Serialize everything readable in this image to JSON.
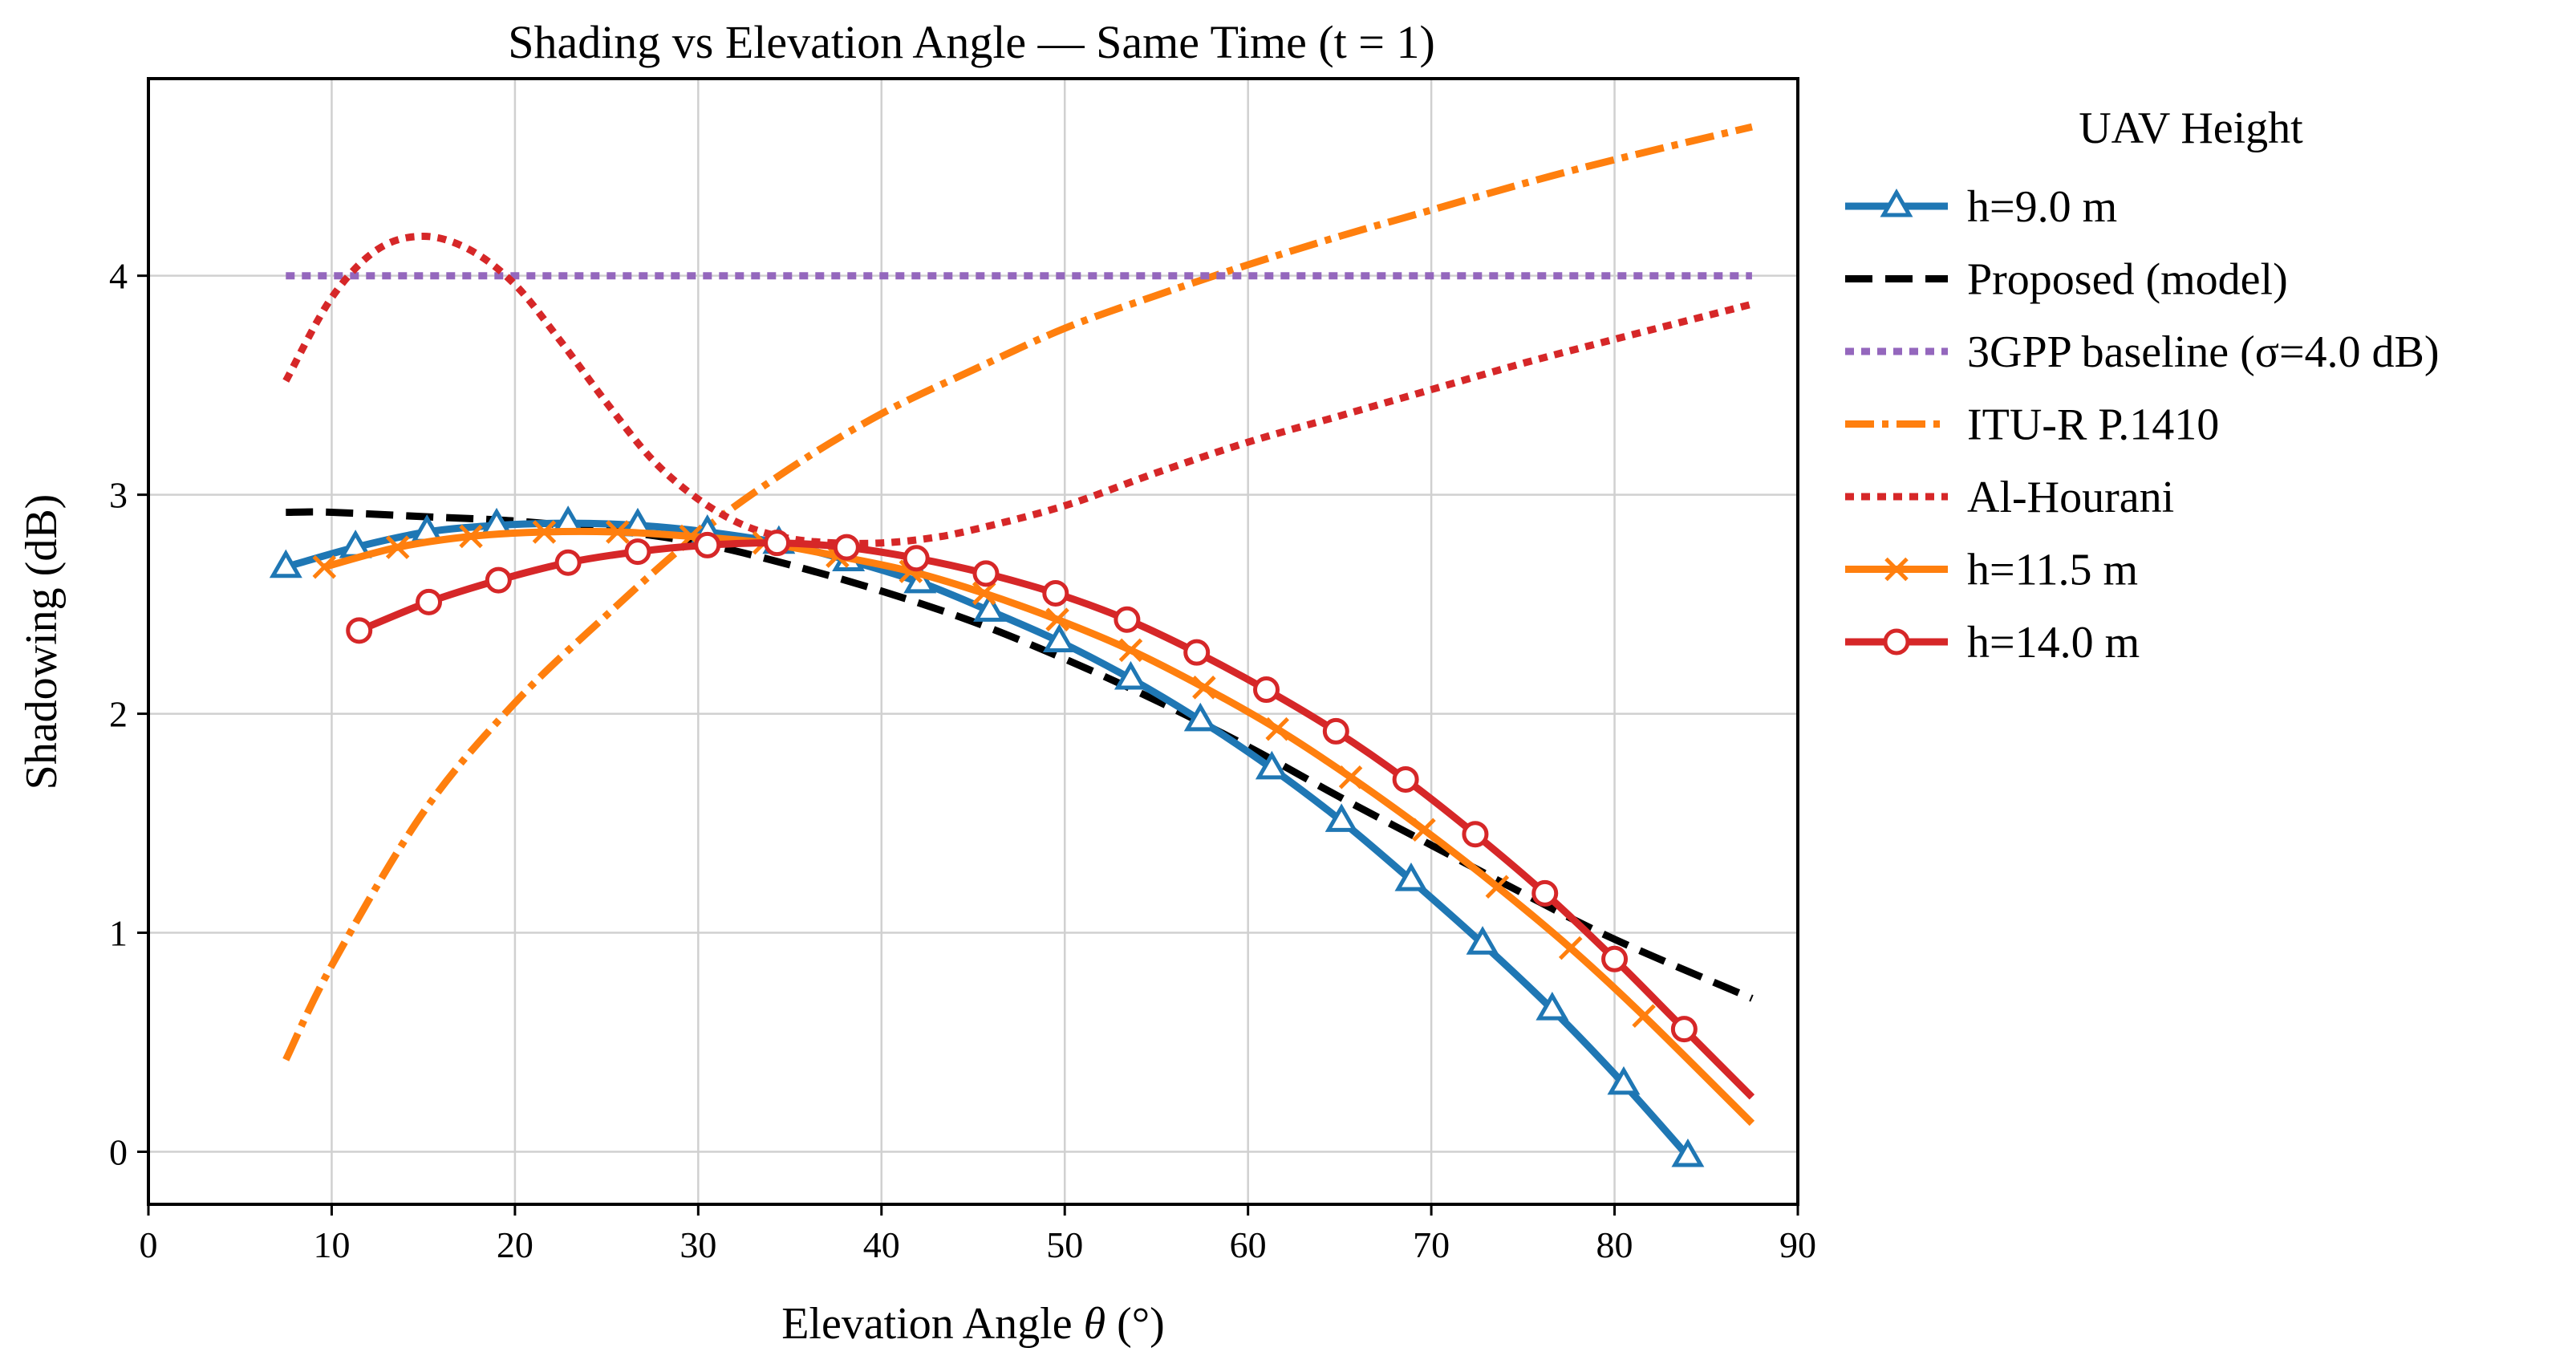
{
  "chart_data": {
    "type": "line",
    "title": "Shading vs Elevation Angle — Same Time (t = 1)",
    "xlabel_prefix": "Elevation Angle ",
    "xlabel_symbol": "θ",
    "xlabel_suffix": " (°)",
    "ylabel": "Shadowing (dB)",
    "xlim": [
      0,
      90
    ],
    "ylim": [
      -0.24,
      4.9
    ],
    "xticks": [
      0,
      10,
      20,
      30,
      40,
      50,
      60,
      70,
      80,
      90
    ],
    "yticks": [
      0,
      1,
      2,
      3,
      4
    ],
    "grid": true,
    "legend_title": "UAV Height",
    "legend_position": "outside-right",
    "series": [
      {
        "name": "h=9.0 m",
        "style": "solid-markers",
        "marker": "triangle",
        "color": "#1f77b4",
        "x": [
          7.5,
          11.3,
          15.2,
          19.0,
          22.9,
          26.7,
          30.5,
          34.4,
          38.2,
          42.1,
          45.9,
          49.7,
          53.6,
          57.4,
          61.3,
          65.1,
          68.9,
          72.8,
          76.6,
          80.5,
          84.0
        ],
        "y": [
          2.67,
          2.76,
          2.83,
          2.86,
          2.87,
          2.86,
          2.83,
          2.78,
          2.7,
          2.6,
          2.47,
          2.33,
          2.16,
          1.97,
          1.75,
          1.51,
          1.24,
          0.95,
          0.65,
          0.31,
          -0.02
        ]
      },
      {
        "name": "Proposed (model)",
        "style": "dashed",
        "color": "#000000",
        "x": [
          7.5,
          10,
          15,
          20,
          25,
          30,
          35,
          40,
          45,
          50,
          55,
          60,
          65,
          70,
          75,
          80,
          87.5
        ],
        "y": [
          2.92,
          2.92,
          2.9,
          2.88,
          2.84,
          2.78,
          2.68,
          2.56,
          2.42,
          2.25,
          2.06,
          1.85,
          1.62,
          1.4,
          1.18,
          0.97,
          0.7
        ]
      },
      {
        "name": "3GPP baseline (σ=4.0 dB)",
        "style": "dotted",
        "color": "#9467bd",
        "x": [
          7.5,
          87.5
        ],
        "y": [
          4.0,
          4.0
        ]
      },
      {
        "name": "ITU-R P.1410",
        "style": "dashdot",
        "color": "#ff7f0e",
        "x": [
          7.5,
          10,
          15,
          20,
          25,
          30,
          35,
          40,
          45,
          50,
          55,
          60,
          65,
          70,
          75,
          80,
          87.5
        ],
        "y": [
          0.42,
          0.85,
          1.55,
          2.05,
          2.45,
          2.82,
          3.12,
          3.37,
          3.57,
          3.76,
          3.91,
          4.05,
          4.18,
          4.3,
          4.42,
          4.53,
          4.68
        ]
      },
      {
        "name": "Al-Hourani",
        "style": "dotted",
        "color": "#d62728",
        "x": [
          7.5,
          10,
          12.5,
          15,
          17.5,
          20,
          22.5,
          25,
          27.5,
          30,
          32.5,
          35,
          37.5,
          40,
          42.5,
          45,
          50,
          55,
          60,
          65,
          70,
          75,
          80,
          87.5
        ],
        "y": [
          3.52,
          3.9,
          4.12,
          4.18,
          4.12,
          3.96,
          3.7,
          3.42,
          3.16,
          2.98,
          2.86,
          2.8,
          2.78,
          2.78,
          2.8,
          2.84,
          2.95,
          3.1,
          3.24,
          3.36,
          3.48,
          3.6,
          3.71,
          3.87
        ]
      },
      {
        "name": "h=11.5 m",
        "style": "solid-markers",
        "marker": "x",
        "color": "#ff7f0e",
        "x": [
          9.6,
          13.6,
          17.6,
          21.6,
          25.6,
          29.6,
          33.6,
          37.6,
          41.6,
          45.6,
          49.6,
          53.6,
          57.6,
          61.6,
          65.6,
          69.6,
          73.6,
          77.6,
          81.6,
          87.5
        ],
        "y": [
          2.67,
          2.76,
          2.81,
          2.83,
          2.83,
          2.81,
          2.78,
          2.72,
          2.65,
          2.55,
          2.43,
          2.29,
          2.12,
          1.93,
          1.71,
          1.47,
          1.21,
          0.93,
          0.62,
          0.13
        ]
      },
      {
        "name": "h=14.0 m",
        "style": "solid-markers",
        "marker": "circle",
        "color": "#d62728",
        "x": [
          11.5,
          15.3,
          19.1,
          22.9,
          26.7,
          30.5,
          34.3,
          38.1,
          41.9,
          45.7,
          49.5,
          53.4,
          57.2,
          61.0,
          64.8,
          68.6,
          72.4,
          76.2,
          80.0,
          83.8,
          87.5
        ],
        "y": [
          2.38,
          2.51,
          2.61,
          2.69,
          2.74,
          2.77,
          2.78,
          2.76,
          2.71,
          2.64,
          2.55,
          2.43,
          2.28,
          2.11,
          1.92,
          1.7,
          1.45,
          1.18,
          0.88,
          0.56,
          0.25
        ]
      }
    ]
  }
}
